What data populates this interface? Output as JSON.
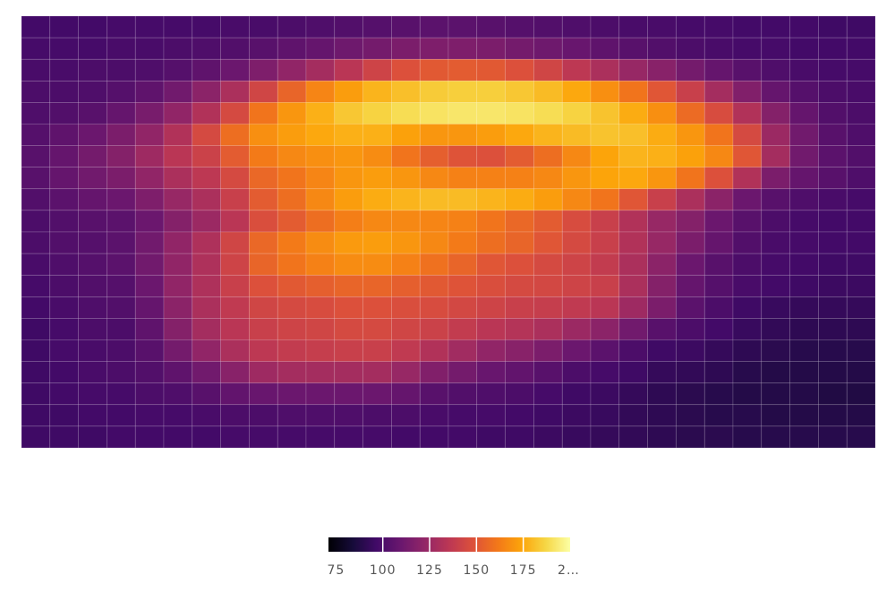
{
  "chart_data": {
    "type": "heatmap",
    "colorscale": "inferno",
    "zlim": [
      71,
      200
    ],
    "zticks": [
      75,
      100,
      125,
      150,
      175,
      {
        "value": 200,
        "label": "2…"
      }
    ],
    "z": [
      [
        97,
        97,
        97,
        98,
        98,
        98,
        98,
        99,
        99,
        100,
        101,
        102,
        103,
        104,
        105,
        105,
        104,
        103,
        102,
        101,
        100,
        99,
        99,
        98,
        98,
        97,
        97,
        97,
        96,
        96
      ],
      [
        98,
        98,
        98,
        99,
        99,
        100,
        101,
        102,
        104,
        106,
        108,
        111,
        113,
        115,
        116,
        116,
        115,
        113,
        111,
        109,
        106,
        104,
        102,
        100,
        99,
        98,
        98,
        97,
        97,
        97
      ],
      [
        99,
        99,
        100,
        100,
        101,
        103,
        106,
        110,
        116,
        122,
        128,
        135,
        142,
        148,
        151,
        152,
        151,
        148,
        143,
        136,
        130,
        124,
        119,
        113,
        108,
        104,
        101,
        99,
        98,
        98
      ],
      [
        100,
        100,
        101,
        103,
        106,
        112,
        120,
        130,
        143,
        155,
        165,
        172,
        178,
        181,
        184,
        185,
        185,
        183,
        180,
        175,
        168,
        160,
        150,
        140,
        128,
        117,
        108,
        103,
        100,
        99
      ],
      [
        101,
        102,
        104,
        108,
        114,
        122,
        132,
        145,
        160,
        170,
        177,
        183,
        186,
        189,
        191,
        192,
        192,
        191,
        189,
        186,
        182,
        176,
        168,
        157,
        146,
        132,
        118,
        108,
        102,
        100
      ],
      [
        103,
        106,
        110,
        115,
        122,
        132,
        145,
        158,
        168,
        172,
        175,
        177,
        177,
        173,
        170,
        170,
        172,
        175,
        178,
        180,
        182,
        181,
        176,
        170,
        160,
        145,
        125,
        112,
        104,
        101
      ],
      [
        104,
        108,
        113,
        118,
        126,
        135,
        141,
        152,
        162,
        166,
        168,
        170,
        167,
        160,
        153,
        149,
        148,
        152,
        158,
        166,
        174,
        178,
        177,
        173,
        166,
        150,
        128,
        112,
        105,
        102
      ],
      [
        104,
        108,
        112,
        115,
        122,
        130,
        136,
        145,
        156,
        160,
        165,
        170,
        172,
        170,
        166,
        164,
        164,
        164,
        166,
        170,
        174,
        175,
        170,
        160,
        148,
        132,
        115,
        108,
        104,
        101
      ],
      [
        102,
        105,
        108,
        110,
        116,
        124,
        130,
        140,
        152,
        158,
        166,
        172,
        176,
        178,
        180,
        180,
        178,
        176,
        172,
        166,
        160,
        150,
        140,
        130,
        120,
        110,
        104,
        101,
        99,
        98
      ],
      [
        100,
        102,
        104,
        105,
        110,
        118,
        125,
        135,
        147,
        152,
        158,
        163,
        166,
        166,
        165,
        164,
        160,
        156,
        152,
        146,
        140,
        132,
        124,
        118,
        110,
        104,
        100,
        98,
        97,
        97
      ],
      [
        100,
        102,
        103,
        105,
        112,
        122,
        131,
        143,
        156,
        162,
        167,
        171,
        172,
        170,
        166,
        162,
        158,
        155,
        150,
        145,
        140,
        132,
        124,
        115,
        108,
        102,
        99,
        98,
        97,
        97
      ],
      [
        99,
        101,
        103,
        105,
        112,
        122,
        131,
        142,
        155,
        160,
        164,
        167,
        167,
        164,
        159,
        155,
        150,
        148,
        145,
        142,
        138,
        130,
        120,
        110,
        104,
        100,
        98,
        97,
        96,
        96
      ],
      [
        98,
        100,
        102,
        103,
        110,
        122,
        131,
        140,
        148,
        151,
        153,
        155,
        155,
        153,
        151,
        149,
        147,
        145,
        144,
        142,
        140,
        130,
        118,
        108,
        103,
        99,
        97,
        96,
        95,
        95
      ],
      [
        97,
        99,
        101,
        102,
        108,
        120,
        130,
        137,
        143,
        145,
        146,
        148,
        148,
        147,
        146,
        144,
        142,
        140,
        139,
        137,
        135,
        126,
        115,
        105,
        100,
        96,
        94,
        93,
        93,
        93
      ],
      [
        96,
        98,
        100,
        100,
        106,
        118,
        128,
        135,
        140,
        142,
        143,
        145,
        145,
        143,
        141,
        138,
        135,
        133,
        130,
        125,
        120,
        112,
        104,
        100,
        97,
        94,
        92,
        91,
        91,
        91
      ],
      [
        96,
        98,
        99,
        100,
        104,
        113,
        122,
        130,
        136,
        138,
        139,
        140,
        140,
        137,
        132,
        127,
        122,
        119,
        115,
        110,
        105,
        100,
        96,
        95,
        93,
        91,
        90,
        89,
        89,
        89
      ],
      [
        96,
        97,
        99,
        100,
        102,
        106,
        112,
        119,
        126,
        128,
        128,
        128,
        128,
        124,
        117,
        113,
        109,
        107,
        104,
        100,
        98,
        96,
        93,
        92,
        91,
        89,
        88,
        88,
        88,
        88
      ],
      [
        96,
        97,
        98,
        98,
        100,
        101,
        104,
        107,
        109,
        110,
        110,
        110,
        110,
        108,
        104,
        102,
        101,
        100,
        98,
        96,
        95,
        93,
        91,
        90,
        89,
        88,
        88,
        88,
        87,
        87
      ],
      [
        96,
        96,
        97,
        97,
        98,
        98,
        99,
        100,
        100,
        101,
        101,
        101,
        100,
        100,
        99,
        98,
        98,
        97,
        96,
        95,
        94,
        92,
        91,
        90,
        89,
        89,
        88,
        88,
        88,
        88
      ],
      [
        96,
        96,
        96,
        97,
        97,
        97,
        97,
        98,
        98,
        98,
        98,
        98,
        98,
        97,
        97,
        97,
        96,
        96,
        95,
        94,
        93,
        92,
        91,
        90,
        90,
        89,
        89,
        89,
        89,
        89
      ]
    ]
  }
}
